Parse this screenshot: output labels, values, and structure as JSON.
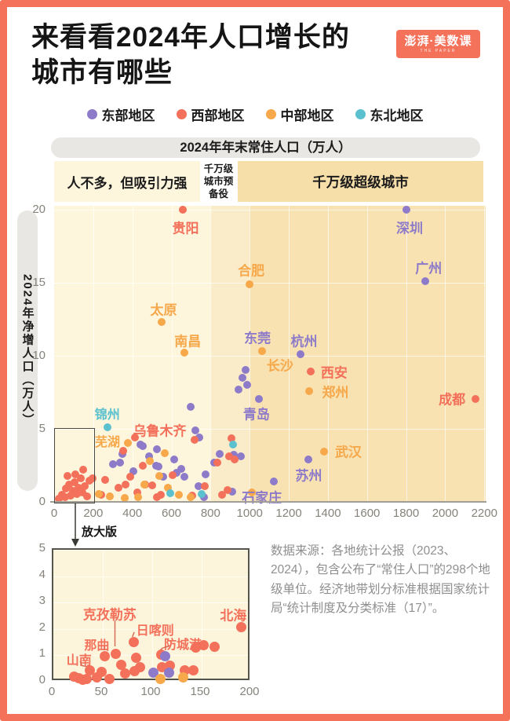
{
  "title": {
    "line1": "来看看2024年人口增长的",
    "line2": "城市有哪些"
  },
  "logo": {
    "text": "澎湃·美数课",
    "subtext": "THE PAPER"
  },
  "legend": [
    {
      "label": "东部地区",
      "region": "east"
    },
    {
      "label": "西部地区",
      "region": "west"
    },
    {
      "label": "中部地区",
      "region": "mid"
    },
    {
      "label": "东北地区",
      "region": "northeast"
    }
  ],
  "region_colors": {
    "east": "#8d7bc9",
    "west": "#f3705a",
    "mid": "#f6a84a",
    "northeast": "#5bc1cf"
  },
  "frame_color": "#f4715a",
  "x_axis_title": "2024年年末常住人口（万人）",
  "y_axis_title": "2024年净增人口（万人）",
  "inset_tag": "放大版",
  "source_note": "数据来源：各地统计公报（2023、2024），包含公布了“常住人口”的298个地级单位。经济地带划分标准根据国家统计局“统计制度及分类标准（17）”。",
  "chart_data": [
    {
      "type": "scatter",
      "name": "main",
      "xlabel": "2024年年末常住人口（万人）",
      "ylabel": "2024年净增人口（万人）",
      "xlim": [
        0,
        2207
      ],
      "ylim": [
        0,
        20.3
      ],
      "xticks": [
        0,
        200,
        400,
        600,
        800,
        1000,
        1200,
        1400,
        1600,
        1800,
        2000,
        2200
      ],
      "yticks": [
        0,
        5,
        10,
        15,
        20
      ],
      "grid": true,
      "zones": [
        {
          "label": "人不多，但吸引力强",
          "from": 0,
          "to": 800,
          "bg": "#fdf5dc"
        },
        {
          "label": "千万级城市预备役",
          "from": 800,
          "to": 1000,
          "bg": "#faecc9"
        },
        {
          "label": "千万级超级城市",
          "from": 1000,
          "to": 2207,
          "bg": "#f8e2b2"
        }
      ],
      "series": [
        {
          "name": "东部地区",
          "region": "east",
          "points": [
            [
              300,
              2.6
            ],
            [
              337,
              2.7
            ],
            [
              350,
              3.3
            ],
            [
              405,
              2.1
            ],
            [
              440,
              3.9
            ],
            [
              453,
              3.8
            ],
            [
              485,
              3.1
            ],
            [
              520,
              2.45
            ],
            [
              526,
              3.6
            ],
            [
              534,
              2.4
            ],
            [
              558,
              1.7
            ],
            [
              612,
              2.9
            ],
            [
              626,
              2.0
            ],
            [
              650,
              2.25
            ],
            [
              666,
              1.7
            ],
            [
              700,
              6.5
            ],
            [
              724,
              4.9
            ],
            [
              739,
              1.1
            ],
            [
              744,
              4.4
            ],
            [
              767,
              0.3
            ],
            [
              775,
              1.9
            ],
            [
              820,
              2.7
            ],
            [
              847,
              3.3
            ],
            [
              911,
              0.7
            ],
            [
              919,
              3.2
            ],
            [
              943,
              7.7
            ],
            [
              955,
              3.1
            ],
            [
              963,
              8.5
            ],
            [
              979,
              9.05
            ],
            [
              987,
              8.0
            ],
            [
              1048,
              7.05
            ],
            [
              1124,
              1.4
            ],
            [
              1260,
              10.1
            ],
            [
              1300,
              2.9
            ],
            [
              1800,
              20.0
            ],
            [
              1900,
              15.1
            ]
          ]
        },
        {
          "name": "西部地区",
          "region": "west",
          "points": [
            [
              25,
              0.2
            ],
            [
              40,
              0.5
            ],
            [
              55,
              0.3
            ],
            [
              62,
              0.9
            ],
            [
              70,
              1.8
            ],
            [
              75,
              1.2
            ],
            [
              85,
              0.45
            ],
            [
              95,
              0.75
            ],
            [
              105,
              1.35
            ],
            [
              110,
              1.9
            ],
            [
              115,
              0.55
            ],
            [
              125,
              0.95
            ],
            [
              135,
              1.6
            ],
            [
              145,
              0.65
            ],
            [
              150,
              2.2
            ],
            [
              158,
              1.05
            ],
            [
              168,
              0.35
            ],
            [
              180,
              1.45
            ],
            [
              195,
              1.6
            ],
            [
              240,
              0.5
            ],
            [
              262,
              1.5
            ],
            [
              330,
              0.95
            ],
            [
              353,
              3.5
            ],
            [
              365,
              1.2
            ],
            [
              390,
              1.7
            ],
            [
              413,
              4.4
            ],
            [
              425,
              0.65
            ],
            [
              455,
              2.45
            ],
            [
              466,
              1.2
            ],
            [
              500,
              1.15
            ],
            [
              526,
              0.3
            ],
            [
              545,
              0.5
            ],
            [
              605,
              1.85
            ],
            [
              660,
              20.0
            ],
            [
              705,
              0.45
            ],
            [
              719,
              4.25
            ],
            [
              770,
              1.05
            ],
            [
              835,
              2.7
            ],
            [
              860,
              0.5
            ],
            [
              887,
              0.8
            ],
            [
              895,
              3.1
            ],
            [
              905,
              4.35
            ],
            [
              923,
              2.9
            ],
            [
              1313,
              8.9
            ],
            [
              2153,
              7.05
            ]
          ]
        },
        {
          "name": "中部地区",
          "region": "mid",
          "points": [
            [
              230,
              0.55
            ],
            [
              285,
              0.4
            ],
            [
              360,
              0.25
            ],
            [
              377,
              4.05
            ],
            [
              430,
              0.3
            ],
            [
              460,
              1.2
            ],
            [
              490,
              2.8
            ],
            [
              538,
              1.8
            ],
            [
              550,
              12.3
            ],
            [
              565,
              3.35
            ],
            [
              580,
              0.95
            ],
            [
              640,
              0.5
            ],
            [
              667,
              10.2
            ],
            [
              698,
              0.3
            ],
            [
              1000,
              14.9
            ],
            [
              1010,
              0.65
            ],
            [
              1062,
              10.3
            ],
            [
              1305,
              7.6
            ],
            [
              1382,
              3.45
            ]
          ]
        },
        {
          "name": "东北地区",
          "region": "northeast",
          "points": [
            [
              273,
              5.1
            ],
            [
              594,
              0.6
            ],
            [
              755,
              0.55
            ],
            [
              915,
              3.9
            ]
          ]
        }
      ],
      "point_labels": [
        {
          "text": "贵阳",
          "region": "west",
          "x": 672,
          "y": 18.8,
          "size": 17
        },
        {
          "text": "深圳",
          "region": "east",
          "x": 1818,
          "y": 18.8,
          "size": 17
        },
        {
          "text": "广州",
          "region": "east",
          "x": 1915,
          "y": 16.1,
          "size": 17
        },
        {
          "text": "合肥",
          "region": "mid",
          "x": 1008,
          "y": 15.9,
          "size": 17
        },
        {
          "text": "太原",
          "region": "mid",
          "x": 560,
          "y": 13.2,
          "size": 17
        },
        {
          "text": "南昌",
          "region": "mid",
          "x": 683,
          "y": 11.1,
          "size": 17
        },
        {
          "text": "东莞",
          "region": "east",
          "x": 1040,
          "y": 11.3,
          "size": 17
        },
        {
          "text": "杭州",
          "region": "east",
          "x": 1278,
          "y": 11.1,
          "size": 17
        },
        {
          "text": "长沙",
          "region": "mid",
          "x": 1155,
          "y": 9.4,
          "size": 17
        },
        {
          "text": "西安",
          "region": "west",
          "x": 1432,
          "y": 8.9,
          "size": 17
        },
        {
          "text": "郑州",
          "region": "mid",
          "x": 1438,
          "y": 7.6,
          "size": 17
        },
        {
          "text": "青岛",
          "region": "east",
          "x": 1035,
          "y": 6.05,
          "size": 17
        },
        {
          "text": "成都",
          "region": "west",
          "x": 2035,
          "y": 7.1,
          "size": 17
        },
        {
          "text": "武汉",
          "region": "mid",
          "x": 1505,
          "y": 3.5,
          "size": 17
        },
        {
          "text": "苏州",
          "region": "east",
          "x": 1302,
          "y": 1.9,
          "size": 17
        },
        {
          "text": "石家庄",
          "region": "east",
          "x": 1062,
          "y": 0.4,
          "size": 17
        },
        {
          "text": "锦州",
          "region": "northeast",
          "x": 272,
          "y": 6.05,
          "size": 16
        },
        {
          "text": "乌鲁木齐",
          "region": "west",
          "x": 540,
          "y": 4.95,
          "size": 17
        },
        {
          "text": "芜湖",
          "region": "mid",
          "x": 273,
          "y": 4.2,
          "size": 16
        }
      ]
    },
    {
      "type": "scatter",
      "name": "inset",
      "title": "放大版",
      "xlim": [
        0,
        200
      ],
      "ylim": [
        0,
        5
      ],
      "xticks": [
        0,
        50,
        100,
        150,
        200
      ],
      "yticks": [
        0,
        1,
        2,
        3,
        4,
        5
      ],
      "grid": true,
      "series": [
        {
          "name": "西部地区",
          "region": "west",
          "points": [
            [
              21,
              0.2
            ],
            [
              26,
              0.12
            ],
            [
              30,
              0.07
            ],
            [
              34,
              0.1
            ],
            [
              37,
              0.42
            ],
            [
              44,
              0.15
            ],
            [
              49,
              0.38
            ],
            [
              52,
              0.98
            ],
            [
              57,
              0.1
            ],
            [
              63,
              1.05
            ],
            [
              69,
              0.65
            ],
            [
              73,
              0.3
            ],
            [
              81,
              1.51
            ],
            [
              82,
              0.4
            ],
            [
              84,
              0.9
            ],
            [
              88,
              0.55
            ],
            [
              109,
              1.02
            ],
            [
              110,
              0.55
            ],
            [
              118,
              0.62
            ],
            [
              133,
              0.42
            ],
            [
              142,
              0.44
            ],
            [
              144,
              1.3
            ],
            [
              152,
              1.39
            ],
            [
              163,
              1.32
            ],
            [
              190,
              2.07
            ]
          ]
        },
        {
          "name": "东部地区",
          "region": "east",
          "points": [
            [
              101,
              0.33
            ],
            [
              113,
              0.97
            ],
            [
              117,
              0.33
            ]
          ]
        },
        {
          "name": "中部地区",
          "region": "mid",
          "points": [
            [
              108,
              0.1
            ],
            [
              131,
              0.15
            ]
          ]
        }
      ],
      "point_labels": [
        {
          "text": "克孜勒苏",
          "region": "west",
          "x": 57,
          "y": 2.6,
          "size": 17
        },
        {
          "text": "北海",
          "region": "west",
          "x": 182,
          "y": 2.55,
          "size": 17
        },
        {
          "text": "日喀则",
          "region": "west",
          "x": 103,
          "y": 1.98,
          "size": 16
        },
        {
          "text": "那曲",
          "region": "west",
          "x": 44,
          "y": 1.42,
          "size": 16
        },
        {
          "text": "防城港",
          "region": "west",
          "x": 131,
          "y": 1.45,
          "size": 16
        },
        {
          "text": "山南",
          "region": "west",
          "x": 26,
          "y": 0.85,
          "size": 16
        }
      ],
      "annotation_lines": [
        {
          "path": [
            [
              63,
              2.25
            ],
            [
              63,
              1.25
            ]
          ]
        },
        {
          "path": [
            [
              52,
              1.26
            ],
            [
              52,
              1.1
            ]
          ]
        },
        {
          "path": [
            [
              83,
              1.8
            ],
            [
              81,
              1.62
            ]
          ]
        },
        {
          "path": [
            [
              120,
              1.28
            ],
            [
              112,
              1.18
            ],
            [
              110,
              1.1
            ]
          ]
        },
        {
          "path": [
            [
              27,
              0.68
            ],
            [
              29,
              0.5
            ],
            [
              34,
              0.47
            ]
          ]
        }
      ]
    }
  ]
}
